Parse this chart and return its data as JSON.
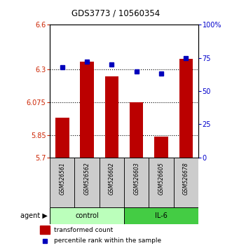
{
  "title": "GDS3773 / 10560354",
  "samples": [
    "GSM526561",
    "GSM526562",
    "GSM526602",
    "GSM526603",
    "GSM526605",
    "GSM526678"
  ],
  "groups": [
    "control",
    "control",
    "control",
    "IL-6",
    "IL-6",
    "IL-6"
  ],
  "transformed_counts": [
    5.97,
    6.35,
    6.25,
    6.075,
    5.84,
    6.37
  ],
  "percentile_ranks": [
    68,
    72,
    70,
    65,
    63,
    75
  ],
  "ylim_left": [
    5.7,
    6.6
  ],
  "yticks_left": [
    5.7,
    5.85,
    6.075,
    6.3,
    6.6
  ],
  "ytick_labels_left": [
    "5.7",
    "5.85",
    "6.075",
    "6.3",
    "6.6"
  ],
  "ylim_right": [
    0,
    100
  ],
  "yticks_right": [
    0,
    25,
    50,
    75,
    100
  ],
  "ytick_labels_right": [
    "0",
    "25",
    "50",
    "75",
    "100%"
  ],
  "bar_color": "#BB0000",
  "dot_color": "#0000BB",
  "bar_width": 0.55,
  "control_color": "#BBFFBB",
  "il6_color": "#44CC44",
  "left_tick_color": "#CC2200",
  "right_tick_color": "#0000CC",
  "agent_label": "agent",
  "legend_bar_label": "transformed count",
  "legend_dot_label": "percentile rank within the sample",
  "fig_width": 3.31,
  "fig_height": 3.54
}
